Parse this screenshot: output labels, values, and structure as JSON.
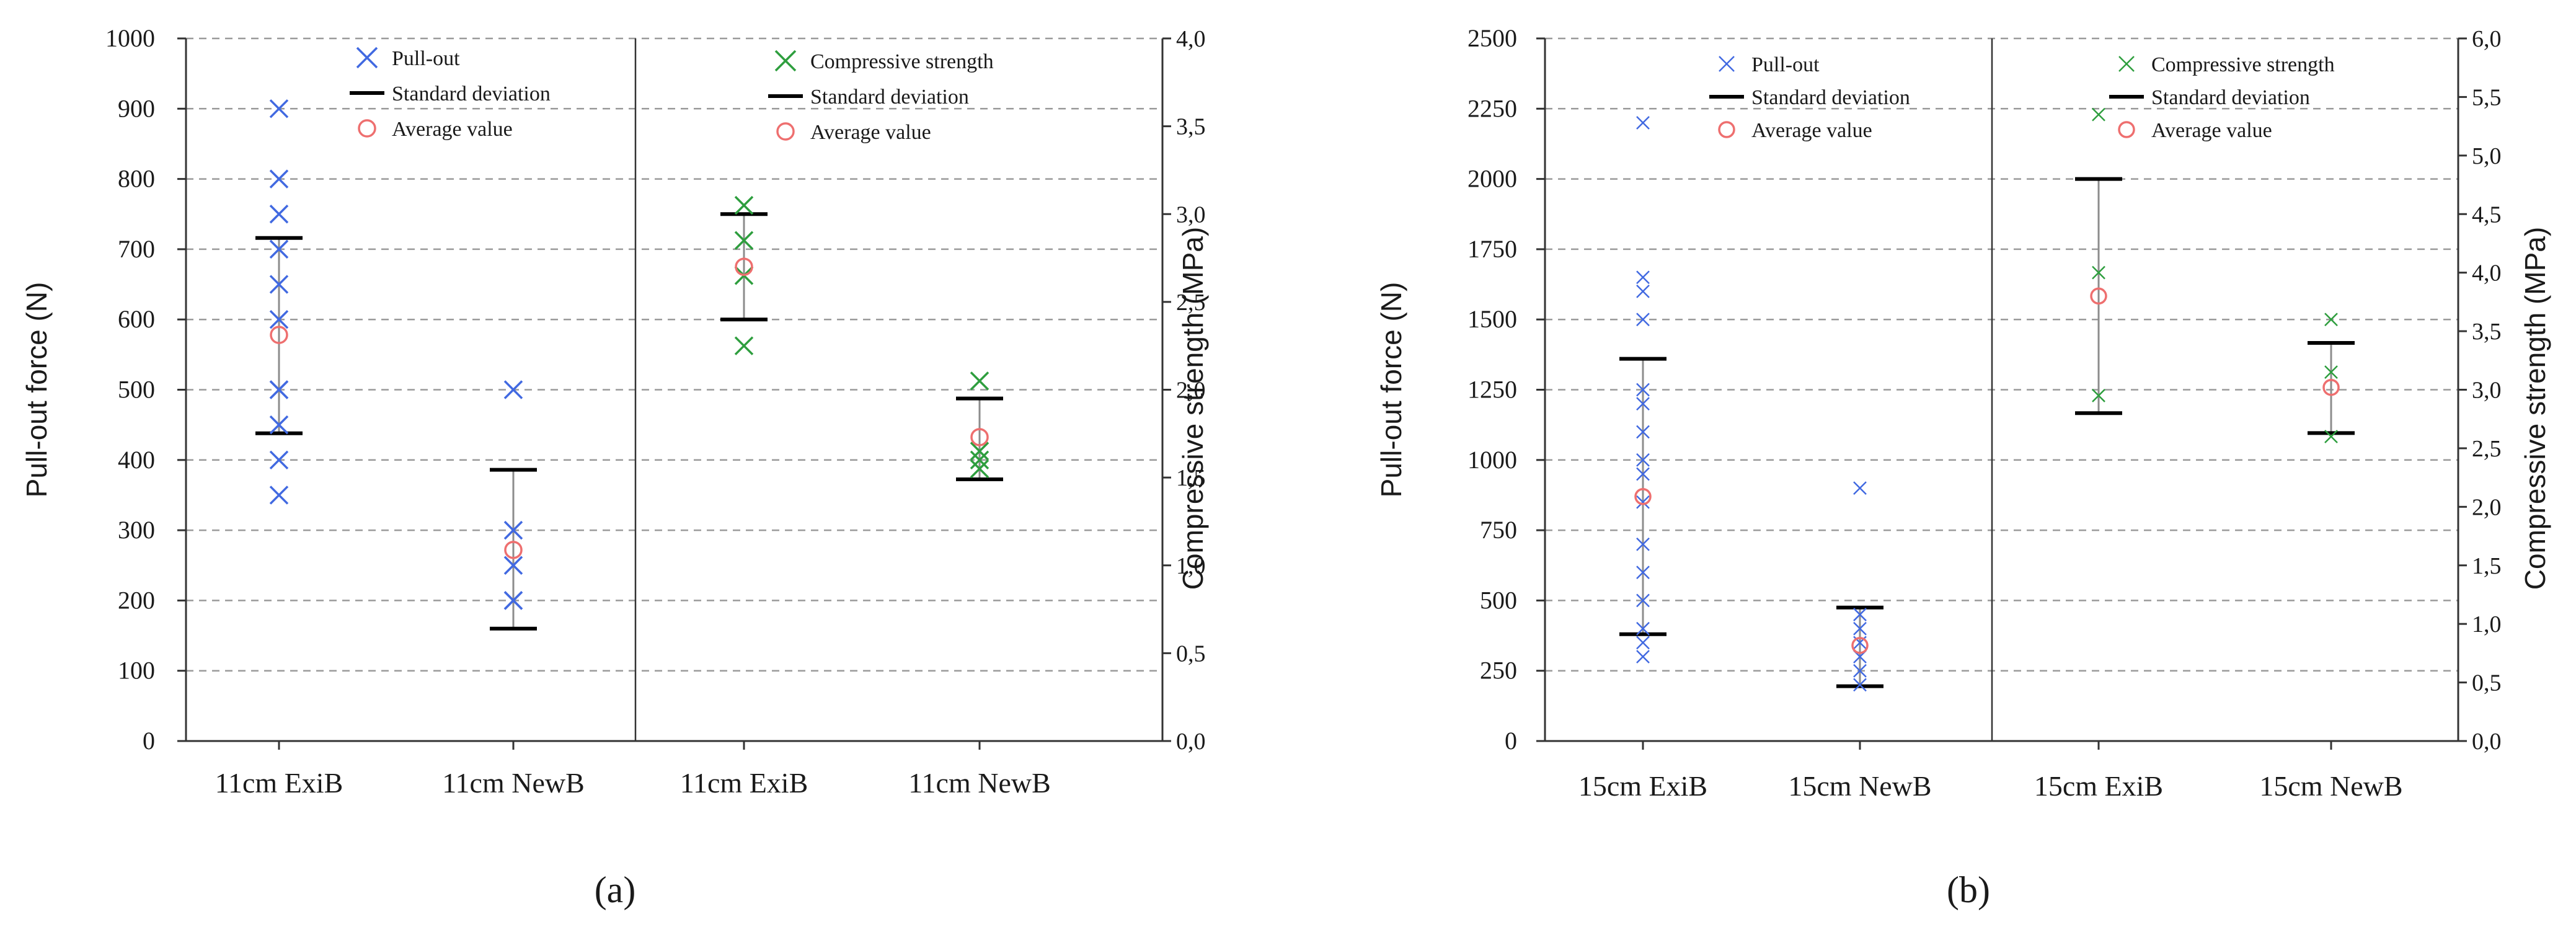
{
  "colors": {
    "pullout": "#4169e1",
    "compressive": "#2e9e3e",
    "average": "#ee6f6f",
    "stdev": "#000000",
    "grid": "#9a9a9a",
    "axis": "#333333",
    "whisker": "#8c8c8c"
  },
  "legend": {
    "pullout": "Pull-out",
    "compressive": "Compressive strength",
    "stdev": "Standard deviation",
    "average": "Average value"
  },
  "chart_data": [
    {
      "type": "scatter",
      "panel_label": "(a)",
      "ylabel": "Pull-out force (N)",
      "y2label": "Compressive strength (MPa)",
      "ylim": [
        0,
        1000
      ],
      "y_ticks": [
        0,
        100,
        200,
        300,
        400,
        500,
        600,
        700,
        800,
        900,
        1000
      ],
      "y_tick_labels": [
        "0",
        "100",
        "200",
        "300",
        "400",
        "500",
        "600",
        "700",
        "800",
        "900",
        "1000"
      ],
      "y2lim": [
        0,
        4
      ],
      "y2_ticks": [
        0,
        0.5,
        1,
        1.5,
        2,
        2.5,
        3,
        3.5,
        4
      ],
      "y2_tick_labels": [
        "0,0",
        "0,5",
        "1,0",
        "1,5",
        "2,0",
        "2,5",
        "3,0",
        "3,5",
        "4,0"
      ],
      "grid": true,
      "legend_position": "top",
      "categories": [
        "11cm ExiB",
        "11cm NewB",
        "11cm ExiB",
        "11cm NewB"
      ],
      "groups": [
        {
          "category": "11cm ExiB",
          "series": "Pull-out",
          "axis": "left",
          "points": [
            350,
            400,
            450,
            500,
            500,
            600,
            650,
            700,
            750,
            800,
            900
          ],
          "average": 578,
          "std_low": 438,
          "std_high": 716
        },
        {
          "category": "11cm NewB",
          "series": "Pull-out",
          "axis": "left",
          "points": [
            200,
            200,
            250,
            300,
            500
          ],
          "average": 272,
          "std_low": 160,
          "std_high": 386
        },
        {
          "category": "11cm ExiB",
          "series": "Compressive strength",
          "axis": "right",
          "points": [
            2.25,
            2.65,
            2.85,
            3.05
          ],
          "average": 2.7,
          "std_low": 2.4,
          "std_high": 3.0
        },
        {
          "category": "11cm NewB",
          "series": "Compressive strength",
          "axis": "right",
          "points": [
            1.55,
            1.6,
            1.65,
            2.05
          ],
          "average": 1.73,
          "std_low": 1.49,
          "std_high": 1.95
        }
      ]
    },
    {
      "type": "scatter",
      "panel_label": "(b)",
      "ylabel": "Pull-out force (N)",
      "y2label": "Compressive strength (MPa)",
      "ylim": [
        0,
        2500
      ],
      "y_ticks": [
        0,
        250,
        500,
        750,
        1000,
        1250,
        1500,
        1750,
        2000,
        2250,
        2500
      ],
      "y_tick_labels": [
        "0",
        "250",
        "500",
        "750",
        "1000",
        "1250",
        "1500",
        "1750",
        "2000",
        "2250",
        "2500"
      ],
      "y2lim": [
        0,
        6
      ],
      "y2_ticks": [
        0,
        0.5,
        1,
        1.5,
        2,
        2.5,
        3,
        3.5,
        4,
        4.5,
        5,
        5.5,
        6
      ],
      "y2_tick_labels": [
        "0,0",
        "0,5",
        "1,0",
        "1,5",
        "2,0",
        "2,5",
        "3,0",
        "3,5",
        "4,0",
        "4,5",
        "5,0",
        "5,5",
        "6,0"
      ],
      "grid": true,
      "legend_position": "top",
      "categories": [
        "15cm ExiB",
        "15cm NewB",
        "15cm ExiB",
        "15cm NewB"
      ],
      "groups": [
        {
          "category": "15cm ExiB",
          "series": "Pull-out",
          "axis": "left",
          "points": [
            300,
            350,
            400,
            500,
            600,
            700,
            850,
            950,
            1000,
            1100,
            1200,
            1250,
            1500,
            1600,
            1650,
            2200
          ],
          "average": 870,
          "std_low": 380,
          "std_high": 1360
        },
        {
          "category": "15cm NewB",
          "series": "Pull-out",
          "axis": "left",
          "points": [
            200,
            250,
            300,
            350,
            400,
            450,
            900
          ],
          "average": 340,
          "std_low": 195,
          "std_high": 475
        },
        {
          "category": "15cm ExiB",
          "series": "Compressive strength",
          "axis": "right",
          "points": [
            2.95,
            4.0,
            5.35
          ],
          "average": 3.8,
          "std_low": 2.8,
          "std_high": 4.8
        },
        {
          "category": "15cm NewB",
          "series": "Compressive strength",
          "axis": "right",
          "points": [
            2.6,
            3.15,
            3.6
          ],
          "average": 3.02,
          "std_low": 2.63,
          "std_high": 3.4
        }
      ]
    }
  ]
}
